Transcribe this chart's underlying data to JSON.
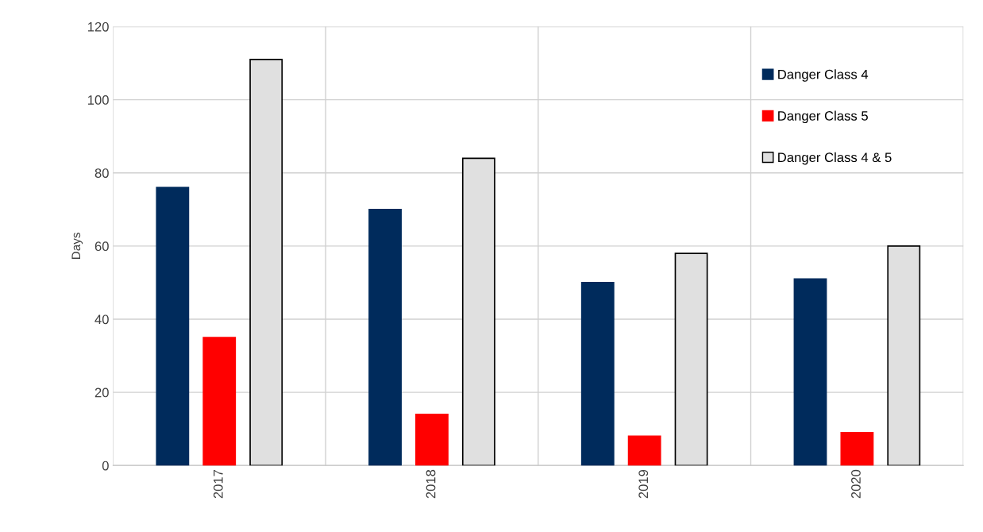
{
  "chart_data": {
    "type": "bar",
    "ylabel": "Days",
    "categories": [
      "2017",
      "2018",
      "2019",
      "2020"
    ],
    "series": [
      {
        "name": "Danger Class 4",
        "color": "#002b5c",
        "values": [
          76,
          70,
          50,
          51
        ]
      },
      {
        "name": "Danger Class 5",
        "color": "#ff0000",
        "values": [
          35,
          14,
          8,
          9
        ]
      },
      {
        "name": "Danger Class 4 & 5",
        "color": "#e0e0e0",
        "values": [
          111,
          84,
          58,
          60
        ]
      }
    ],
    "ylim": [
      0,
      120
    ],
    "yticks": [
      0,
      20,
      40,
      60,
      80,
      100,
      120
    ],
    "grid": true,
    "legend": "top right"
  }
}
